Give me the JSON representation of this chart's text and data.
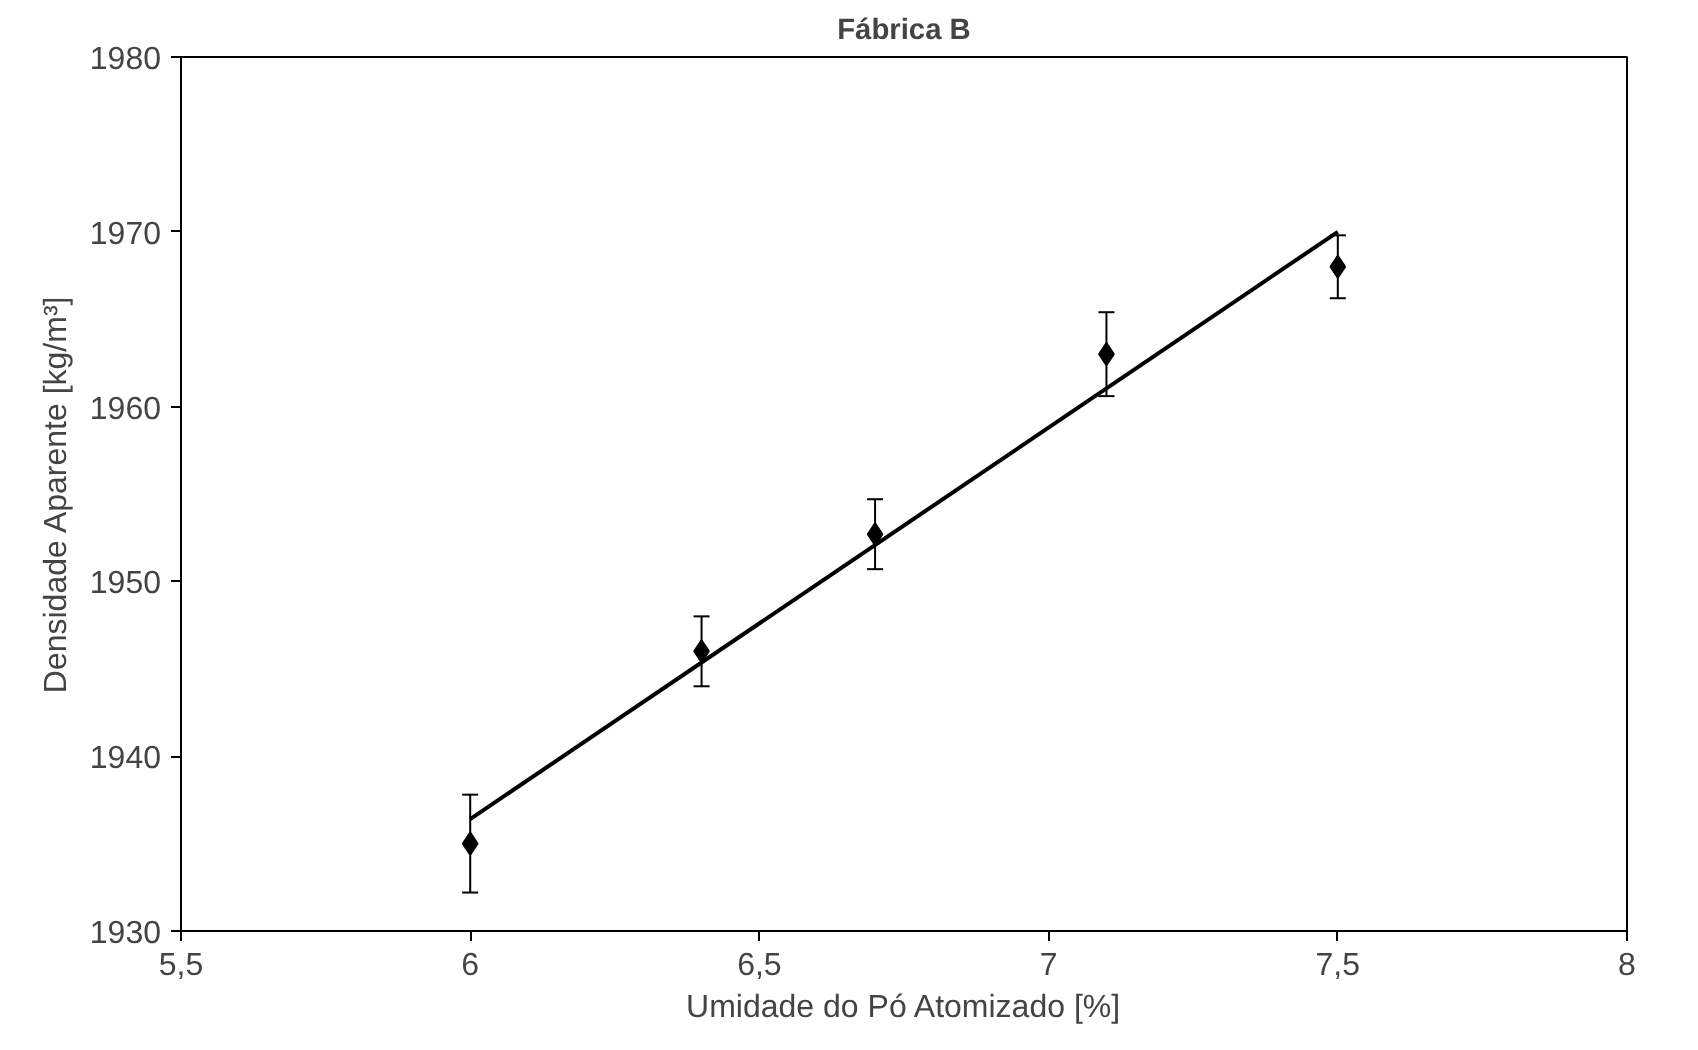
{
  "chart_data": {
    "type": "scatter",
    "title": "Fábrica B",
    "xlabel": "Umidade do Pó Atomizado [%]",
    "ylabel": "Densidade Aparente [kg/m³]",
    "xlim": [
      5.5,
      8
    ],
    "ylim": [
      1930,
      1980
    ],
    "xticks": [
      {
        "value": 5.5,
        "label": "5,5"
      },
      6,
      {
        "value": 6.5,
        "label": "6,5"
      },
      7,
      {
        "value": 7.5,
        "label": "7,5"
      },
      8
    ],
    "yticks": [
      1930,
      1940,
      1950,
      1960,
      1970,
      1980
    ],
    "grid": false,
    "series": [
      {
        "color": "#000000",
        "marker": "diamond",
        "x": [
          6,
          6.4,
          6.7,
          7.1,
          7.5
        ],
        "values": [
          1935,
          1946,
          1952.7,
          1963,
          1968
        ],
        "errors": [
          2.8,
          2.0,
          2.0,
          2.4,
          1.8
        ]
      },
      {
        "type": "line",
        "color": "#000000",
        "marker": "none",
        "line_style": "solid",
        "x": [
          6,
          7.5
        ],
        "values": [
          1936.4,
          1970
        ]
      }
    ]
  }
}
